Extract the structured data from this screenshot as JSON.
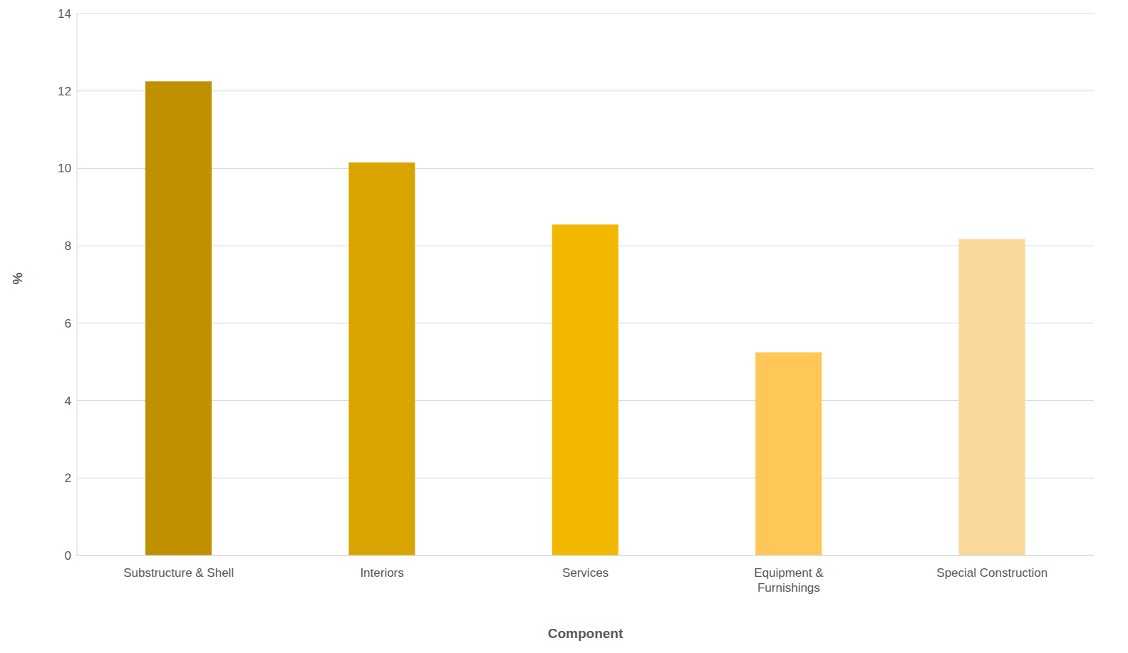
{
  "chart_data": {
    "type": "bar",
    "categories": [
      "Substructure & Shell",
      "Interiors",
      "Services",
      "Equipment & Furnishings",
      "Special Construction"
    ],
    "values": [
      12.25,
      10.15,
      8.55,
      5.25,
      8.17
    ],
    "colors": [
      "#c09000",
      "#daa400",
      "#f2b800",
      "#ffc757",
      "#fad79b"
    ],
    "xlabel": "Component",
    "ylabel": "%",
    "ylim": [
      0,
      14
    ],
    "yticks": [
      0,
      2,
      4,
      6,
      8,
      10,
      12,
      14
    ],
    "grid": true
  }
}
